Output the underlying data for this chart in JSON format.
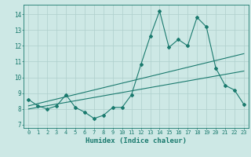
{
  "x": [
    0,
    1,
    2,
    3,
    4,
    5,
    6,
    7,
    8,
    9,
    10,
    11,
    12,
    13,
    14,
    15,
    16,
    17,
    18,
    19,
    20,
    21,
    22,
    23
  ],
  "y_main": [
    8.6,
    8.2,
    8.0,
    8.2,
    8.9,
    8.1,
    7.8,
    7.4,
    7.6,
    8.1,
    8.1,
    8.9,
    10.8,
    12.6,
    14.2,
    11.9,
    12.4,
    12.0,
    13.8,
    13.2,
    10.6,
    9.5,
    9.2,
    8.3
  ],
  "trend1_x": [
    0,
    23
  ],
  "trend1_y": [
    8.2,
    11.5
  ],
  "trend2_x": [
    0,
    23
  ],
  "trend2_y": [
    8.0,
    10.4
  ],
  "line_color": "#1a7a6e",
  "bg_color": "#cde8e5",
  "grid_color": "#aecfcc",
  "xlabel": "Humidex (Indice chaleur)",
  "xlim": [
    -0.5,
    23.5
  ],
  "ylim": [
    6.8,
    14.6
  ],
  "yticks": [
    7,
    8,
    9,
    10,
    11,
    12,
    13,
    14
  ],
  "xticks": [
    0,
    1,
    2,
    3,
    4,
    5,
    6,
    7,
    8,
    9,
    10,
    11,
    12,
    13,
    14,
    15,
    16,
    17,
    18,
    19,
    20,
    21,
    22,
    23
  ]
}
